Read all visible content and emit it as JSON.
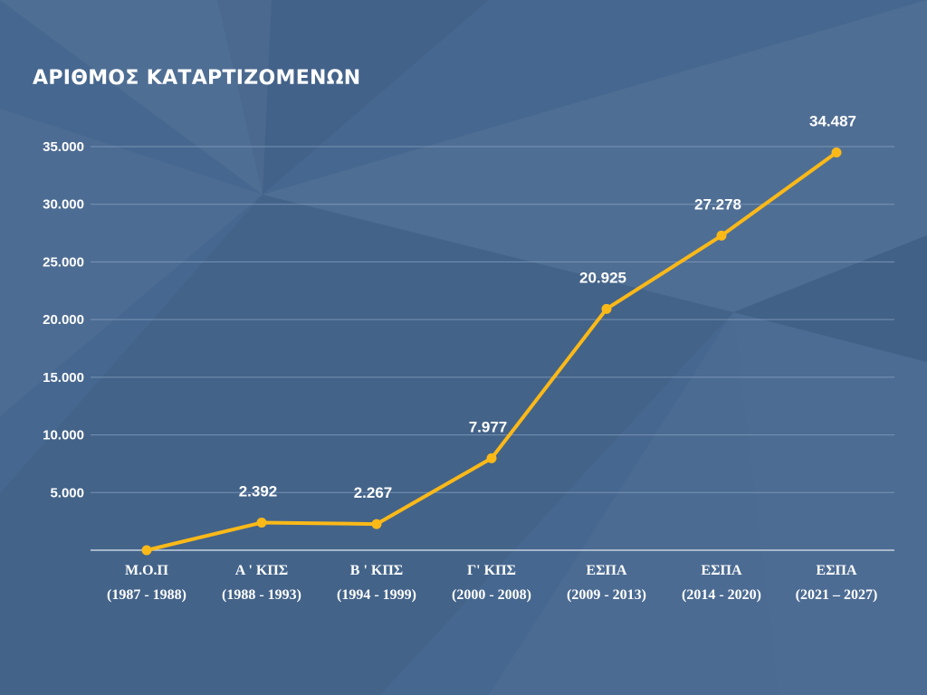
{
  "chart_data": {
    "type": "line",
    "title": "ΑΡΙΘΜΟΣ ΚΑΤΑΡΤΙΖΟΜΕΝΩΝ",
    "categories": [
      [
        "Μ.Ο.Π",
        "(1987 - 1988)"
      ],
      [
        "Α ' ΚΠΣ",
        "(1988 - 1993)"
      ],
      [
        "Β ' ΚΠΣ",
        "(1994 - 1999)"
      ],
      [
        "Γ' ΚΠΣ",
        "(2000 - 2008)"
      ],
      [
        "ΕΣΠΑ",
        "(2009 - 2013)"
      ],
      [
        "ΕΣΠΑ",
        "(2014 - 2020)"
      ],
      [
        "ΕΣΠΑ",
        "(2021 – 2027)"
      ]
    ],
    "values": [
      0,
      2392,
      2267,
      7977,
      20925,
      27278,
      34487
    ],
    "data_labels": [
      "",
      "2.392",
      "2.267",
      "7.977",
      "20.925",
      "27.278",
      "34.487"
    ],
    "ylim": [
      0,
      35000
    ],
    "yticks": [
      5000,
      10000,
      15000,
      20000,
      25000,
      30000,
      35000
    ],
    "ytick_labels": [
      "5.000",
      "10.000",
      "15.000",
      "20.000",
      "25.000",
      "30.000",
      "35.000"
    ],
    "grid": true,
    "colors": {
      "background": "#46678f",
      "line": "#fbb918",
      "grid": "#8aa3c0",
      "axis": "#c4d1e0",
      "text": "#ffffff"
    }
  }
}
